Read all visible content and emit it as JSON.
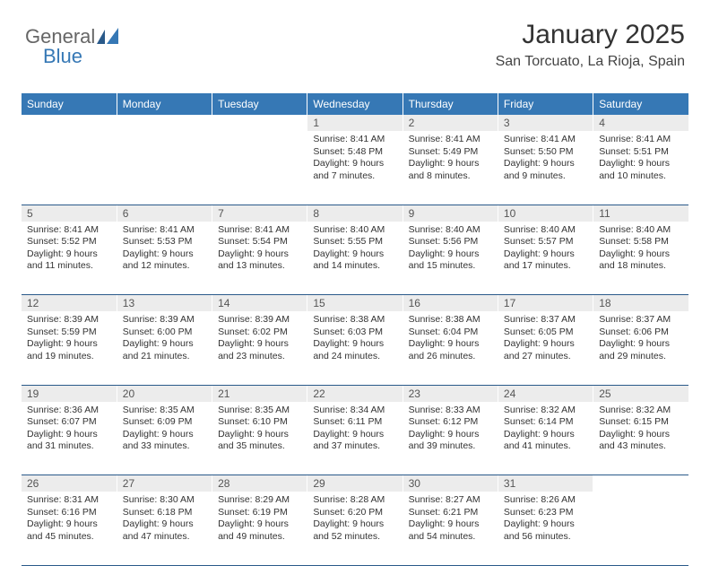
{
  "logo": {
    "part1": "General",
    "part2": "Blue"
  },
  "header": {
    "title": "January 2025",
    "location": "San Torcuato, La Rioja, Spain"
  },
  "styling": {
    "header_bg": "#3678b5",
    "header_text": "#ffffff",
    "daynum_bg": "#ececec",
    "daynum_text": "#555555",
    "cell_border": "#2a5a8a",
    "body_bg": "#ffffff",
    "title_fontsize": 30,
    "location_fontsize": 16,
    "dayheader_fontsize": 12,
    "cell_fontsize": 10.5
  },
  "day_headers": [
    "Sunday",
    "Monday",
    "Tuesday",
    "Wednesday",
    "Thursday",
    "Friday",
    "Saturday"
  ],
  "weeks": [
    {
      "nums": [
        "",
        "",
        "",
        "1",
        "2",
        "3",
        "4"
      ],
      "cells": [
        null,
        null,
        null,
        {
          "sunrise": "8:41 AM",
          "sunset": "5:48 PM",
          "daylight": "9 hours and 7 minutes."
        },
        {
          "sunrise": "8:41 AM",
          "sunset": "5:49 PM",
          "daylight": "9 hours and 8 minutes."
        },
        {
          "sunrise": "8:41 AM",
          "sunset": "5:50 PM",
          "daylight": "9 hours and 9 minutes."
        },
        {
          "sunrise": "8:41 AM",
          "sunset": "5:51 PM",
          "daylight": "9 hours and 10 minutes."
        }
      ]
    },
    {
      "nums": [
        "5",
        "6",
        "7",
        "8",
        "9",
        "10",
        "11"
      ],
      "cells": [
        {
          "sunrise": "8:41 AM",
          "sunset": "5:52 PM",
          "daylight": "9 hours and 11 minutes."
        },
        {
          "sunrise": "8:41 AM",
          "sunset": "5:53 PM",
          "daylight": "9 hours and 12 minutes."
        },
        {
          "sunrise": "8:41 AM",
          "sunset": "5:54 PM",
          "daylight": "9 hours and 13 minutes."
        },
        {
          "sunrise": "8:40 AM",
          "sunset": "5:55 PM",
          "daylight": "9 hours and 14 minutes."
        },
        {
          "sunrise": "8:40 AM",
          "sunset": "5:56 PM",
          "daylight": "9 hours and 15 minutes."
        },
        {
          "sunrise": "8:40 AM",
          "sunset": "5:57 PM",
          "daylight": "9 hours and 17 minutes."
        },
        {
          "sunrise": "8:40 AM",
          "sunset": "5:58 PM",
          "daylight": "9 hours and 18 minutes."
        }
      ]
    },
    {
      "nums": [
        "12",
        "13",
        "14",
        "15",
        "16",
        "17",
        "18"
      ],
      "cells": [
        {
          "sunrise": "8:39 AM",
          "sunset": "5:59 PM",
          "daylight": "9 hours and 19 minutes."
        },
        {
          "sunrise": "8:39 AM",
          "sunset": "6:00 PM",
          "daylight": "9 hours and 21 minutes."
        },
        {
          "sunrise": "8:39 AM",
          "sunset": "6:02 PM",
          "daylight": "9 hours and 23 minutes."
        },
        {
          "sunrise": "8:38 AM",
          "sunset": "6:03 PM",
          "daylight": "9 hours and 24 minutes."
        },
        {
          "sunrise": "8:38 AM",
          "sunset": "6:04 PM",
          "daylight": "9 hours and 26 minutes."
        },
        {
          "sunrise": "8:37 AM",
          "sunset": "6:05 PM",
          "daylight": "9 hours and 27 minutes."
        },
        {
          "sunrise": "8:37 AM",
          "sunset": "6:06 PM",
          "daylight": "9 hours and 29 minutes."
        }
      ]
    },
    {
      "nums": [
        "19",
        "20",
        "21",
        "22",
        "23",
        "24",
        "25"
      ],
      "cells": [
        {
          "sunrise": "8:36 AM",
          "sunset": "6:07 PM",
          "daylight": "9 hours and 31 minutes."
        },
        {
          "sunrise": "8:35 AM",
          "sunset": "6:09 PM",
          "daylight": "9 hours and 33 minutes."
        },
        {
          "sunrise": "8:35 AM",
          "sunset": "6:10 PM",
          "daylight": "9 hours and 35 minutes."
        },
        {
          "sunrise": "8:34 AM",
          "sunset": "6:11 PM",
          "daylight": "9 hours and 37 minutes."
        },
        {
          "sunrise": "8:33 AM",
          "sunset": "6:12 PM",
          "daylight": "9 hours and 39 minutes."
        },
        {
          "sunrise": "8:32 AM",
          "sunset": "6:14 PM",
          "daylight": "9 hours and 41 minutes."
        },
        {
          "sunrise": "8:32 AM",
          "sunset": "6:15 PM",
          "daylight": "9 hours and 43 minutes."
        }
      ]
    },
    {
      "nums": [
        "26",
        "27",
        "28",
        "29",
        "30",
        "31",
        ""
      ],
      "cells": [
        {
          "sunrise": "8:31 AM",
          "sunset": "6:16 PM",
          "daylight": "9 hours and 45 minutes."
        },
        {
          "sunrise": "8:30 AM",
          "sunset": "6:18 PM",
          "daylight": "9 hours and 47 minutes."
        },
        {
          "sunrise": "8:29 AM",
          "sunset": "6:19 PM",
          "daylight": "9 hours and 49 minutes."
        },
        {
          "sunrise": "8:28 AM",
          "sunset": "6:20 PM",
          "daylight": "9 hours and 52 minutes."
        },
        {
          "sunrise": "8:27 AM",
          "sunset": "6:21 PM",
          "daylight": "9 hours and 54 minutes."
        },
        {
          "sunrise": "8:26 AM",
          "sunset": "6:23 PM",
          "daylight": "9 hours and 56 minutes."
        },
        null
      ]
    }
  ]
}
